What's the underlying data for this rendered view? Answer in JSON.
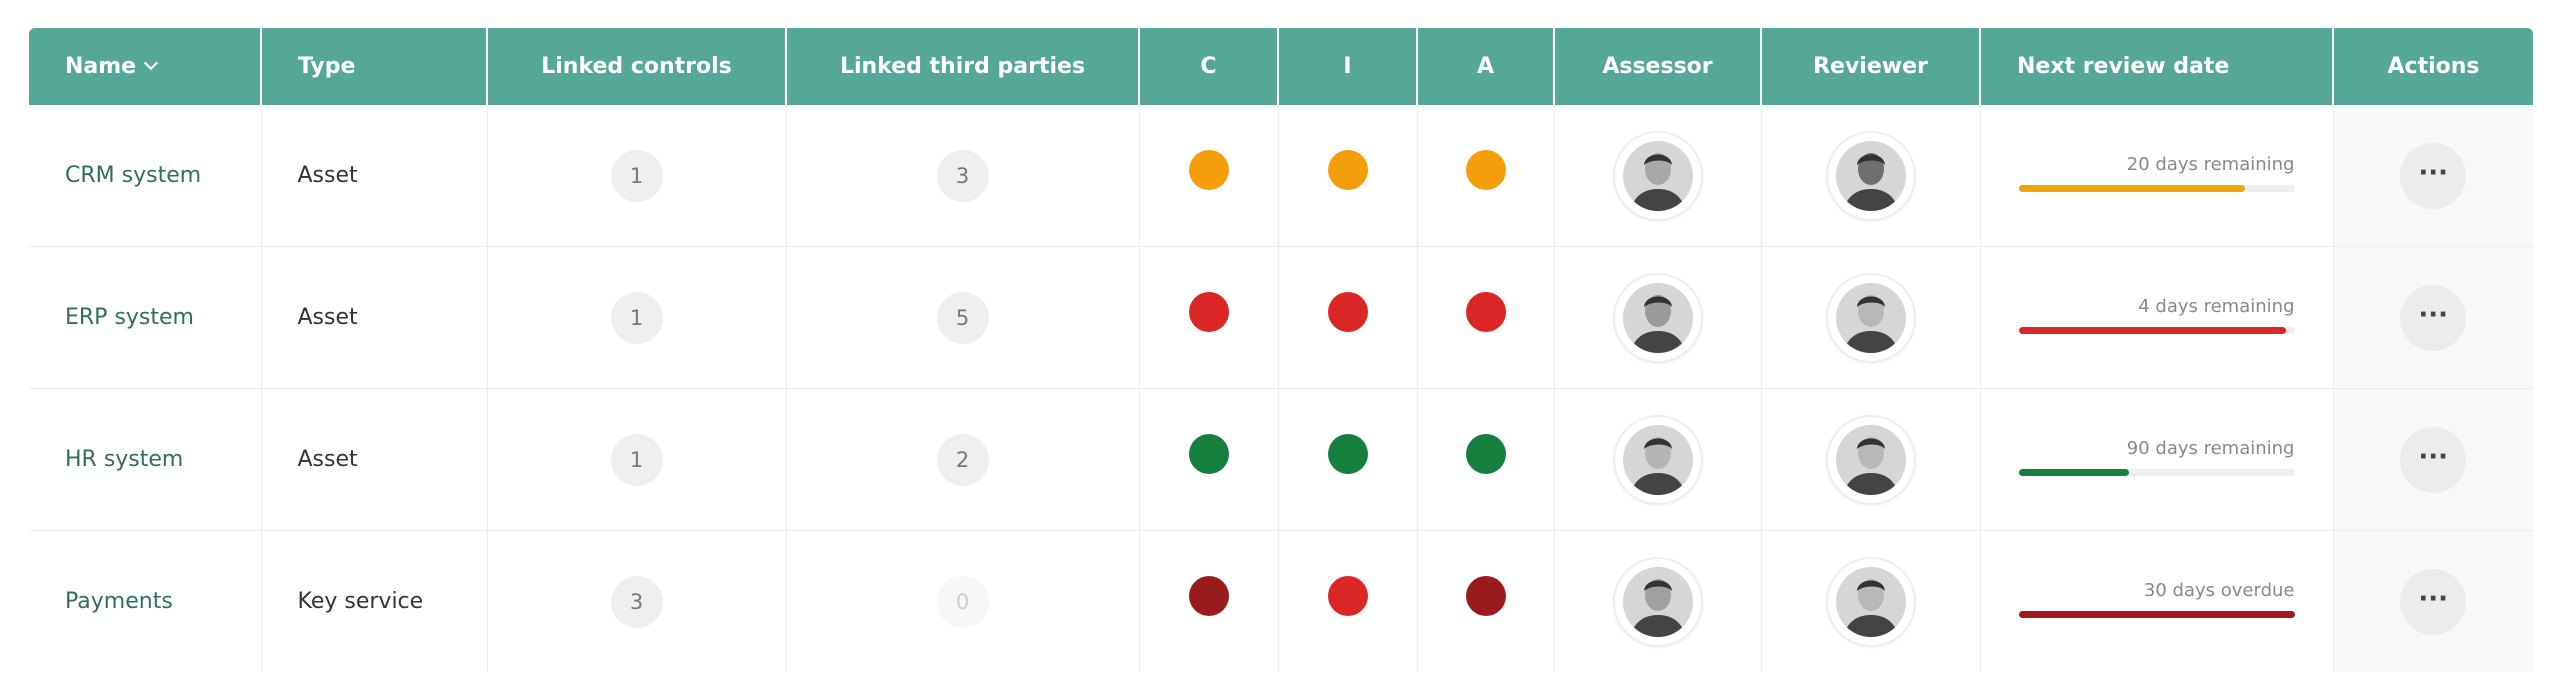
{
  "table": {
    "headers": [
      "Name",
      "Type",
      "Linked controls",
      "Linked third parties",
      "C",
      "I",
      "A",
      "Assessor",
      "Reviewer",
      "Next review date",
      "Actions"
    ],
    "rows": [
      {
        "name": "CRM system",
        "type": "Asset",
        "linked_controls": 1,
        "linked_third_parties": 3,
        "cia": [
          "#f59e0b",
          "#f59e0b",
          "#f59e0b"
        ],
        "review_label": "20 days remaining",
        "review_progress": 82,
        "review_color": "#f0a30a"
      },
      {
        "name": "ERP system",
        "type": "Asset",
        "linked_controls": 1,
        "linked_third_parties": 5,
        "cia": [
          "#dc2626",
          "#dc2626",
          "#dc2626"
        ],
        "review_label": "4 days remaining",
        "review_progress": 97,
        "review_color": "#dc2626"
      },
      {
        "name": "HR system",
        "type": "Asset",
        "linked_controls": 1,
        "linked_third_parties": 2,
        "cia": [
          "#15803d",
          "#15803d",
          "#15803d"
        ],
        "review_label": "90 days remaining",
        "review_progress": 40,
        "review_color": "#15803d"
      },
      {
        "name": "Payments",
        "type": "Key service",
        "linked_controls": 3,
        "linked_third_parties": 0,
        "cia": [
          "#991b1b",
          "#dc2626",
          "#991b1b"
        ],
        "review_label": "30 days overdue",
        "review_progress": 100,
        "review_color": "#a11a1a"
      }
    ]
  }
}
